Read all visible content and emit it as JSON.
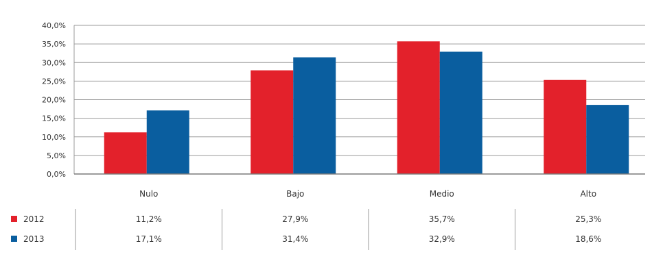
{
  "chart_data": {
    "type": "bar",
    "title": "",
    "xlabel": "",
    "ylabel": "",
    "categories": [
      "Nulo",
      "Bajo",
      "Medio",
      "Alto"
    ],
    "series": [
      {
        "name": "2012",
        "color": "#e3212b",
        "values": [
          11.2,
          27.9,
          35.7,
          25.3
        ],
        "labels": [
          "11,2%",
          "27,9%",
          "35,7%",
          "25,3%"
        ]
      },
      {
        "name": "2013",
        "color": "#0a5e9f",
        "values": [
          17.1,
          31.4,
          32.9,
          18.6
        ],
        "labels": [
          "17,1%",
          "31,4%",
          "32,9%",
          "18,6%"
        ]
      }
    ],
    "ylim": [
      0,
      40
    ],
    "yticks": [
      0,
      5,
      10,
      15,
      20,
      25,
      30,
      35,
      40
    ],
    "ytick_labels": [
      "0,0%",
      "5,0%",
      "10,0%",
      "15,0%",
      "20,0%",
      "25,0%",
      "30,0%",
      "35,0%",
      "40,0%"
    ],
    "grid": true,
    "legend": "data-table-below"
  }
}
